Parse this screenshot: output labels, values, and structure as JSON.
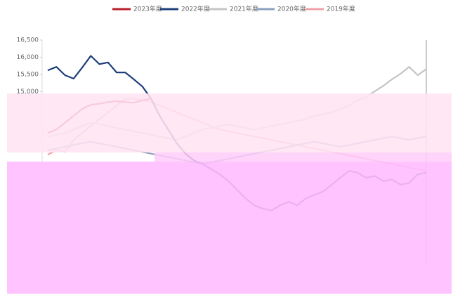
{
  "chart_data": {
    "type": "line",
    "categories": [
      null,
      null,
      null,
      null,
      null,
      null,
      null,
      null,
      null,
      null,
      null,
      null,
      null,
      null,
      null,
      null,
      null,
      null,
      null,
      null,
      null,
      null,
      null,
      null,
      null,
      null,
      null,
      null,
      null,
      null,
      null,
      null,
      null,
      null,
      null,
      null,
      null,
      null,
      null,
      null,
      null,
      null,
      null,
      null,
      null
    ],
    "series": [
      {
        "name": "2023年度",
        "color": "#b8212a",
        "values": [
          13800,
          13900,
          14100,
          14300,
          14500,
          14620,
          14650,
          14700,
          14720,
          14700,
          14680,
          14750,
          14800,
          null,
          null,
          null,
          null,
          null,
          null,
          null,
          null,
          null,
          null,
          null,
          null,
          null,
          null,
          null,
          null,
          null,
          null,
          null,
          null,
          null,
          null,
          null,
          null,
          null,
          null,
          null,
          null,
          null,
          null,
          null,
          null
        ]
      },
      {
        "name": "2022年度",
        "color": "#1f3f7a",
        "values": [
          15620,
          15720,
          15480,
          15380,
          15700,
          16040,
          15800,
          15850,
          15560,
          15560,
          15360,
          15150,
          14800,
          14300,
          13900,
          13500,
          13200,
          13000,
          12900,
          12750,
          12600,
          12400,
          12150,
          11900,
          11700,
          11600,
          11550,
          11700,
          11800,
          11700,
          11900,
          12000,
          12100,
          12300,
          12500,
          12700,
          12650,
          12500,
          12550,
          12400,
          12450,
          12300,
          12350,
          12600,
          12650
        ]
      },
      {
        "name": "2021年度",
        "color": "#c4c4c4",
        "values": [
          13700,
          13750,
          13800,
          13900,
          14000,
          14100,
          14050,
          14000,
          13950,
          13900,
          13850,
          13800,
          13750,
          13700,
          13650,
          13600,
          13700,
          13800,
          13900,
          13950,
          14000,
          14050,
          14000,
          13950,
          13900,
          13950,
          14000,
          14050,
          14100,
          14150,
          14200,
          14300,
          14350,
          14400,
          14500,
          14600,
          14750,
          14850,
          15010,
          15170,
          15360,
          15520,
          15720,
          15480,
          15660
        ]
      },
      {
        "name": "2020年度",
        "color": "#8ea0bf",
        "values": [
          13300,
          13350,
          13400,
          13450,
          13500,
          13550,
          13500,
          13450,
          13400,
          13350,
          13300,
          13250,
          13200,
          13150,
          13100,
          13050,
          13000,
          12950,
          12900,
          12950,
          13000,
          13050,
          13100,
          13150,
          13200,
          13250,
          13300,
          13350,
          13400,
          13450,
          13500,
          13550,
          13500,
          13450,
          13400,
          13450,
          13500,
          13550,
          13600,
          13650,
          13700,
          13650,
          13600,
          13650,
          13700
        ]
      },
      {
        "name": "2019年度",
        "color": "#f2a0a8",
        "values": [
          13170,
          13300,
          13250,
          13600,
          13800,
          14000,
          14200,
          14400,
          14600,
          14790,
          14800,
          14750,
          14700,
          14600,
          14500,
          14400,
          14300,
          14200,
          14100,
          14000,
          13900,
          13850,
          13800,
          13750,
          13700,
          13650,
          13600,
          13550,
          13500,
          13450,
          13400,
          13350,
          13300,
          13250,
          13200,
          13150,
          13100,
          13050,
          13000,
          12950,
          12900,
          12850,
          12800,
          12750,
          12700
        ]
      }
    ],
    "ylim": [
      10000,
      16500
    ],
    "yticks": [
      {
        "value": 15000,
        "label": "15,000"
      },
      {
        "value": 15500,
        "label": "15,500"
      },
      {
        "value": 16000,
        "label": "16,000"
      },
      {
        "value": 16500,
        "label": "16,500"
      }
    ]
  }
}
